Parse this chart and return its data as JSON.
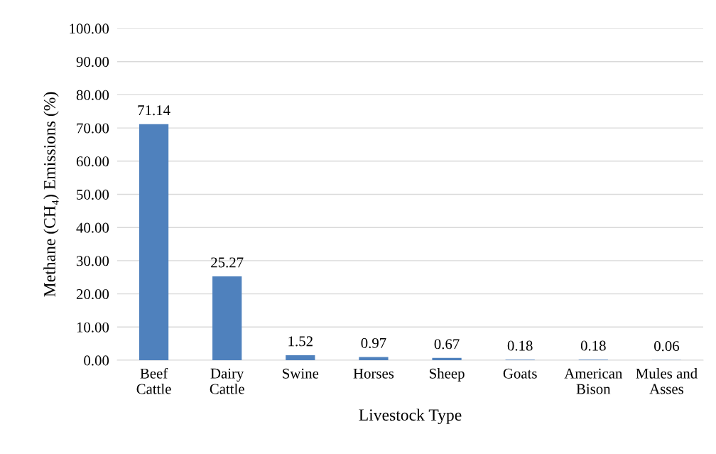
{
  "chart_data": {
    "type": "bar",
    "xlabel": "Livestock Type",
    "ylabel": "Methane (CH₄) Emissions (%)",
    "categories": [
      "Beef Cattle",
      "Dairy Cattle",
      "Swine",
      "Horses",
      "Sheep",
      "Goats",
      "American Bison",
      "Mules and Asses"
    ],
    "values": [
      71.14,
      25.27,
      1.52,
      0.97,
      0.67,
      0.18,
      0.18,
      0.06
    ],
    "color": "#4f81bd",
    "ylim": [
      0,
      100
    ],
    "yticks": [
      {
        "value": 0,
        "label": "0.00"
      },
      {
        "value": 10,
        "label": "10.00"
      },
      {
        "value": 20,
        "label": "20.00"
      },
      {
        "value": 30,
        "label": "30.00"
      },
      {
        "value": 40,
        "label": "40.00"
      },
      {
        "value": 50,
        "label": "50.00"
      },
      {
        "value": 60,
        "label": "60.00"
      },
      {
        "value": 70,
        "label": "70.00"
      },
      {
        "value": 80,
        "label": "80.00"
      },
      {
        "value": 90,
        "label": "90.00"
      },
      {
        "value": 100,
        "label": "100.00"
      }
    ],
    "grid": "y",
    "data_labels": true
  }
}
